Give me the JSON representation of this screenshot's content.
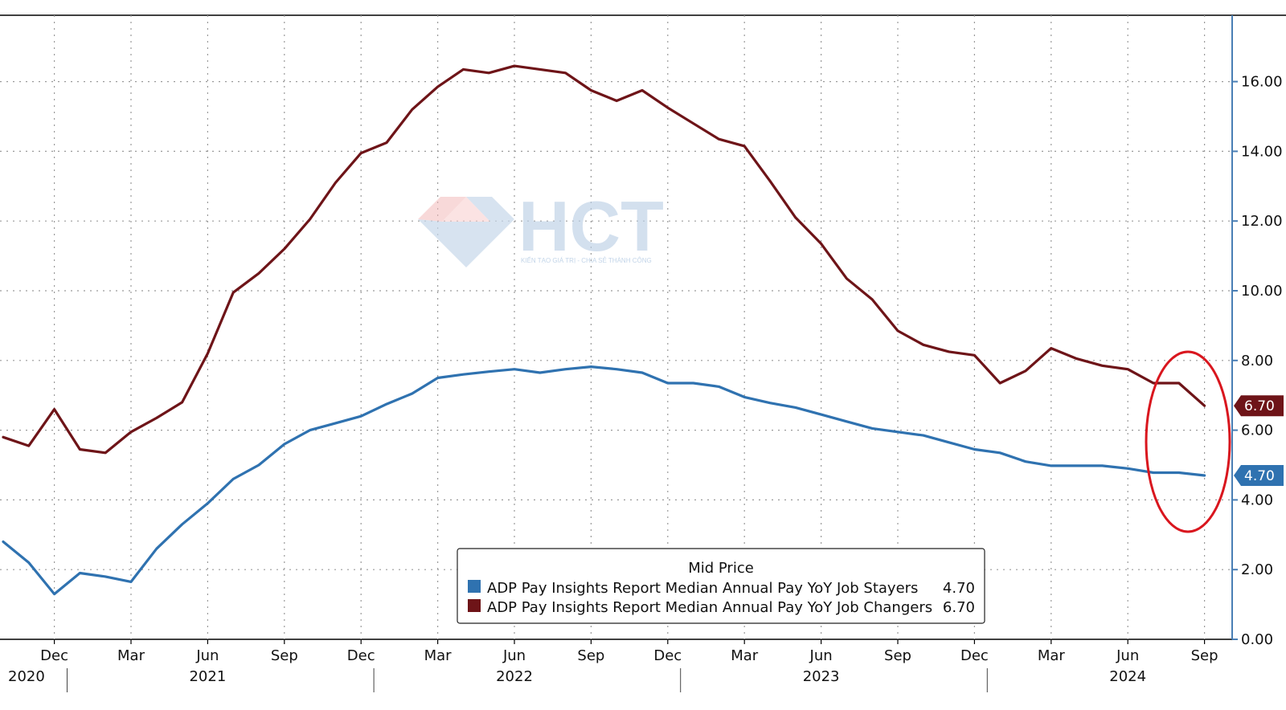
{
  "watermark": {
    "brand": "HCT",
    "tagline": "KIẾN TẠO GIÁ TRỊ - CHIA SẺ THÀNH CÔNG"
  },
  "legend": {
    "title": "Mid Price",
    "entries": [
      {
        "label": "ADP Pay Insights Report Median Annual Pay YoY Job Stayers",
        "value": "4.70",
        "color": "#2f72b0"
      },
      {
        "label": "ADP Pay Insights Report Median Annual Pay YoY Job Changers",
        "value": "6.70",
        "color": "#6e1418"
      }
    ]
  },
  "colors": {
    "stayers": "#2f72b0",
    "changers": "#6e1418",
    "axis": "#4a7fb5",
    "highlight_circle": "#d9161e",
    "grid": "#9a9a9a"
  },
  "chart_data": {
    "type": "line",
    "title": "",
    "xlabel": "",
    "ylabel": "",
    "ylim": [
      0,
      17.5
    ],
    "y_ticks": [
      "0.00",
      "2.00",
      "4.00",
      "6.00",
      "8.00",
      "10.00",
      "12.00",
      "14.00",
      "16.00"
    ],
    "x_start": "2020-10",
    "x_end": "2024-10",
    "x_ticks": [
      {
        "date": "2020-12",
        "label": "Dec"
      },
      {
        "date": "2021-03",
        "label": "Mar"
      },
      {
        "date": "2021-06",
        "label": "Jun"
      },
      {
        "date": "2021-09",
        "label": "Sep"
      },
      {
        "date": "2021-12",
        "label": "Dec"
      },
      {
        "date": "2022-03",
        "label": "Mar"
      },
      {
        "date": "2022-06",
        "label": "Jun"
      },
      {
        "date": "2022-09",
        "label": "Sep"
      },
      {
        "date": "2022-12",
        "label": "Dec"
      },
      {
        "date": "2023-03",
        "label": "Mar"
      },
      {
        "date": "2023-06",
        "label": "Jun"
      },
      {
        "date": "2023-09",
        "label": "Sep"
      },
      {
        "date": "2023-12",
        "label": "Dec"
      },
      {
        "date": "2024-03",
        "label": "Mar"
      },
      {
        "date": "2024-06",
        "label": "Jun"
      },
      {
        "date": "2024-09",
        "label": "Sep"
      }
    ],
    "years": [
      {
        "date": "2020-10",
        "label": "2020"
      },
      {
        "date": "2021-06",
        "label": "2021"
      },
      {
        "date": "2022-06",
        "label": "2022"
      },
      {
        "date": "2023-06",
        "label": "2023"
      },
      {
        "date": "2024-06",
        "label": "2024"
      }
    ],
    "year_separators": [
      "2021-01",
      "2022-01",
      "2023-01",
      "2024-01"
    ],
    "grid": true,
    "legend_position": "bottom-center",
    "x": [
      "2020-10",
      "2020-11",
      "2020-12",
      "2021-01",
      "2021-02",
      "2021-03",
      "2021-04",
      "2021-05",
      "2021-06",
      "2021-07",
      "2021-08",
      "2021-09",
      "2021-10",
      "2021-11",
      "2021-12",
      "2022-01",
      "2022-02",
      "2022-03",
      "2022-04",
      "2022-05",
      "2022-06",
      "2022-07",
      "2022-08",
      "2022-09",
      "2022-10",
      "2022-11",
      "2022-12",
      "2023-01",
      "2023-02",
      "2023-03",
      "2023-04",
      "2023-05",
      "2023-06",
      "2023-07",
      "2023-08",
      "2023-09",
      "2023-10",
      "2023-11",
      "2023-12",
      "2024-01",
      "2024-02",
      "2024-03",
      "2024-04",
      "2024-05",
      "2024-06",
      "2024-07",
      "2024-08",
      "2024-09"
    ],
    "series": [
      {
        "name": "ADP Pay Insights Report Median Annual Pay YoY Job Stayers",
        "key": "stayers",
        "last_value": "4.70",
        "values": [
          2.8,
          2.2,
          1.3,
          1.9,
          1.8,
          1.65,
          2.6,
          3.3,
          3.9,
          4.6,
          5.0,
          5.6,
          6.0,
          6.2,
          6.4,
          6.75,
          7.05,
          7.5,
          7.6,
          7.68,
          7.75,
          7.65,
          7.75,
          7.82,
          7.75,
          7.65,
          7.35,
          7.35,
          7.25,
          6.95,
          6.78,
          6.65,
          6.45,
          6.25,
          6.05,
          5.95,
          5.85,
          5.65,
          5.45,
          5.35,
          5.1,
          4.98,
          4.98,
          4.98,
          4.9,
          4.78,
          4.78,
          4.7
        ]
      },
      {
        "name": "ADP Pay Insights Report Median Annual Pay YoY Job Changers",
        "key": "changers",
        "last_value": "6.70",
        "values": [
          5.8,
          5.55,
          6.6,
          5.45,
          5.35,
          5.95,
          6.35,
          6.8,
          8.2,
          9.95,
          10.5,
          11.2,
          12.05,
          13.1,
          13.95,
          14.25,
          15.2,
          15.85,
          16.35,
          16.25,
          16.45,
          16.35,
          16.25,
          15.75,
          15.45,
          15.75,
          15.25,
          14.8,
          14.35,
          14.15,
          13.15,
          12.1,
          11.35,
          10.35,
          9.75,
          8.85,
          8.45,
          8.25,
          8.15,
          7.35,
          7.7,
          8.35,
          8.05,
          7.85,
          7.75,
          7.35,
          7.35,
          6.7
        ]
      }
    ]
  }
}
